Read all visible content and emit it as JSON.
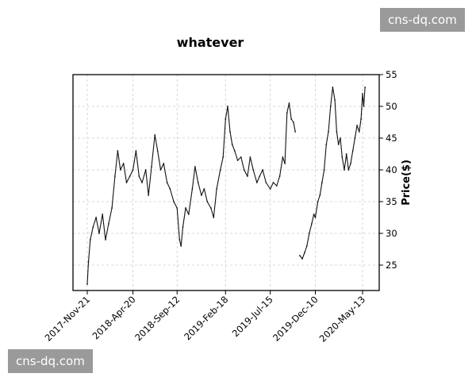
{
  "watermarks": {
    "top": "cns-dq.com",
    "bottom": "cns-dq.com"
  },
  "chart_data": {
    "type": "line",
    "title": "whatever",
    "ylabel": "Price($)",
    "xlabel": "",
    "ylim": [
      21,
      55
    ],
    "yticks": [
      25,
      30,
      35,
      40,
      45,
      50,
      55
    ],
    "xticks": [
      "2017-Nov-21",
      "2018-Apr-20",
      "2018-Sep-12",
      "2019-Feb-18",
      "2019-Jul-15",
      "2019-Dec-10",
      "2020-May-13"
    ],
    "grid": true,
    "y_axis_side": "right",
    "color": "#111111",
    "series": [
      {
        "segments": [
          {
            "x": [
              "2017-Nov-21",
              "2017-Nov-25",
              "2017-Dec-01",
              "2017-Dec-10",
              "2017-Dec-20",
              "2017-Dec-30",
              "2018-Jan-10",
              "2018-Jan-20",
              "2018-Jan-30",
              "2018-Feb-10",
              "2018-Feb-20",
              "2018-Mar-01",
              "2018-Mar-10",
              "2018-Mar-20",
              "2018-Mar-30",
              "2018-Apr-10",
              "2018-Apr-20",
              "2018-Apr-30",
              "2018-May-10",
              "2018-May-20",
              "2018-Jun-01",
              "2018-Jun-10",
              "2018-Jun-20",
              "2018-Jul-01",
              "2018-Jul-10",
              "2018-Jul-20",
              "2018-Jul-30",
              "2018-Aug-10",
              "2018-Aug-20",
              "2018-Sep-01",
              "2018-Sep-12",
              "2018-Sep-20",
              "2018-Sep-25",
              "2018-Oct-01",
              "2018-Oct-10",
              "2018-Oct-20",
              "2018-Nov-01",
              "2018-Nov-10",
              "2018-Nov-20",
              "2018-Dec-01",
              "2018-Dec-10",
              "2018-Dec-20",
              "2019-Jan-01",
              "2019-Jan-10",
              "2019-Jan-20",
              "2019-Feb-01",
              "2019-Feb-10",
              "2019-Feb-18",
              "2019-Feb-25",
              "2019-Mar-05",
              "2019-Mar-12",
              "2019-Mar-20",
              "2019-Mar-30",
              "2019-Apr-10",
              "2019-Apr-20",
              "2019-May-01",
              "2019-May-10",
              "2019-May-20",
              "2019-Jun-01",
              "2019-Jun-10",
              "2019-Jun-20",
              "2019-Jul-01",
              "2019-Jul-15",
              "2019-Jul-25",
              "2019-Aug-05",
              "2019-Aug-15",
              "2019-Aug-25",
              "2019-Sep-01",
              "2019-Sep-08",
              "2019-Sep-15",
              "2019-Sep-22",
              "2019-Sep-29",
              "2019-Oct-05"
            ],
            "y": [
              22,
              25.5,
              29,
              31,
              32.5,
              30,
              33,
              29,
              31.5,
              34,
              39,
              43,
              40,
              41,
              38,
              39,
              40,
              43,
              39,
              38,
              40,
              36,
              40.5,
              45.5,
              43,
              40,
              41,
              38,
              37,
              35,
              34,
              29,
              28,
              31,
              34,
              33,
              37,
              40.5,
              38,
              36,
              37,
              35,
              34,
              32.5,
              37,
              40,
              42,
              48,
              50,
              46,
              44,
              43,
              41.5,
              42,
              40,
              39,
              42,
              40,
              38,
              39,
              40,
              38,
              37,
              38,
              37.5,
              39,
              42,
              41,
              49,
              50.5,
              48,
              47.5,
              46
            ]
          },
          {
            "x": [
              "2019-Oct-20",
              "2019-Oct-28",
              "2019-Nov-05",
              "2019-Nov-12",
              "2019-Nov-20",
              "2019-Nov-28",
              "2019-Dec-05",
              "2019-Dec-10",
              "2019-Dec-18",
              "2019-Dec-25",
              "2020-Jan-01",
              "2020-Jan-08",
              "2020-Jan-15",
              "2020-Jan-22",
              "2020-Jan-29",
              "2020-Feb-05",
              "2020-Feb-12",
              "2020-Feb-18",
              "2020-Feb-24",
              "2020-Mar-01",
              "2020-Mar-07",
              "2020-Mar-14",
              "2020-Mar-21",
              "2020-Mar-28",
              "2020-Apr-04",
              "2020-Apr-11",
              "2020-Apr-18",
              "2020-Apr-25",
              "2020-May-02",
              "2020-May-08",
              "2020-May-13",
              "2020-May-17",
              "2020-May-21"
            ],
            "y": [
              26.5,
              26,
              27,
              28,
              30,
              31.5,
              33,
              32.5,
              35,
              36,
              38,
              40,
              44,
              46,
              50,
              53,
              51,
              46,
              44,
              45,
              42,
              40,
              42.5,
              40,
              41,
              43,
              45,
              47,
              46,
              48,
              52,
              50,
              53
            ]
          }
        ]
      }
    ]
  }
}
